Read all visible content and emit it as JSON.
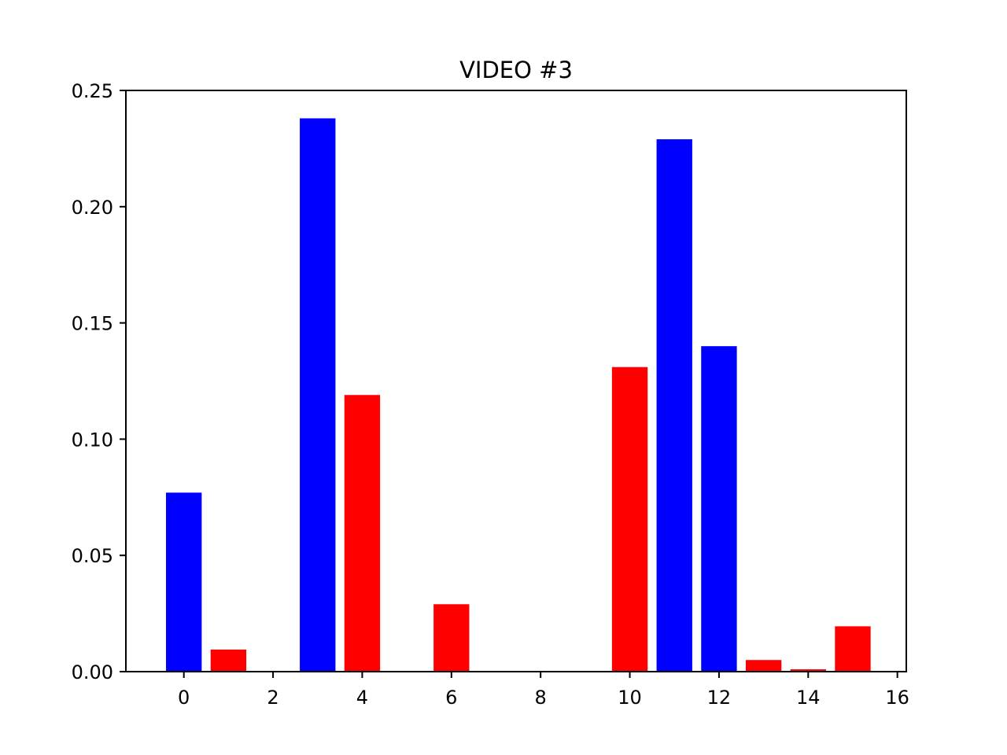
{
  "chart_data": {
    "type": "bar",
    "title": "VIDEO #3",
    "xlabel": "",
    "ylabel": "",
    "xlim": [
      -1.3,
      16.2
    ],
    "ylim": [
      0,
      0.25
    ],
    "xticks": [
      0,
      2,
      4,
      6,
      8,
      10,
      12,
      14,
      16
    ],
    "xtick_labels": [
      "0",
      "2",
      "4",
      "6",
      "8",
      "10",
      "12",
      "14",
      "16"
    ],
    "yticks": [
      0.0,
      0.05,
      0.1,
      0.15,
      0.2,
      0.25
    ],
    "ytick_labels": [
      "0.00",
      "0.05",
      "0.10",
      "0.15",
      "0.20",
      "0.25"
    ],
    "grid": false,
    "legend": false,
    "colors": {
      "blue": "#0000ff",
      "red": "#ff0000"
    },
    "bars": [
      {
        "x": 0,
        "value": 0.077,
        "color": "#0000ff"
      },
      {
        "x": 1,
        "value": 0.0095,
        "color": "#ff0000"
      },
      {
        "x": 3,
        "value": 0.238,
        "color": "#0000ff"
      },
      {
        "x": 4,
        "value": 0.119,
        "color": "#ff0000"
      },
      {
        "x": 6,
        "value": 0.029,
        "color": "#ff0000"
      },
      {
        "x": 10,
        "value": 0.131,
        "color": "#ff0000"
      },
      {
        "x": 11,
        "value": 0.229,
        "color": "#0000ff"
      },
      {
        "x": 12,
        "value": 0.14,
        "color": "#0000ff"
      },
      {
        "x": 13,
        "value": 0.005,
        "color": "#ff0000"
      },
      {
        "x": 14,
        "value": 0.001,
        "color": "#ff0000"
      },
      {
        "x": 15,
        "value": 0.0195,
        "color": "#ff0000"
      }
    ]
  }
}
